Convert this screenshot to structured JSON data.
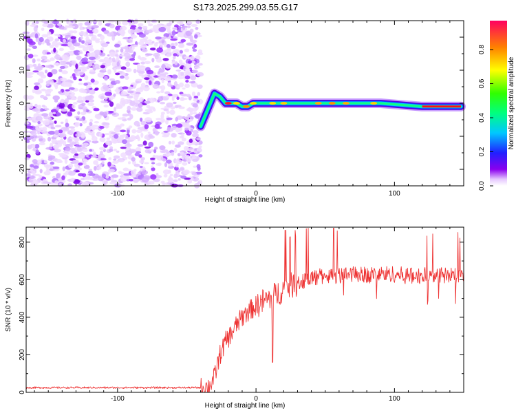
{
  "title": "S173.2025.299.03.55.G17",
  "chart_data": [
    {
      "type": "heatmap",
      "xlabel": "Height of straight line (km)",
      "ylabel": "Frequency (Hz)",
      "xlim": [
        -166,
        150
      ],
      "ylim": [
        -25,
        25
      ],
      "x_ticks": [
        -100,
        0,
        100
      ],
      "y_ticks": [
        -20,
        -10,
        0,
        10,
        20
      ],
      "noise_region_x": [
        -166,
        -40
      ],
      "ridge": {
        "description_x": [
          -40,
          -35,
          -30,
          -26,
          -22,
          -18,
          -14,
          -10,
          -6,
          -2,
          2,
          10,
          30,
          60,
          90,
          120,
          148
        ],
        "frequency_hz": [
          -7,
          -2,
          3,
          2,
          0,
          0,
          0,
          -1,
          -1,
          0,
          0,
          0,
          0,
          0,
          0,
          -1,
          -1
        ]
      },
      "colorbar": {
        "label": "Normalized spectral amplitude",
        "range": [
          0,
          0.97
        ],
        "ticks": [
          0.0,
          0.2,
          0.4,
          0.6,
          0.8
        ],
        "tick_labels": [
          "0.0",
          "0.2",
          "0.4",
          "0.6",
          "0.8"
        ]
      }
    },
    {
      "type": "line",
      "xlabel": "Height of straight line (km)",
      "ylabel": "SNR (10 * v/v)",
      "xlim": [
        -166,
        150
      ],
      "ylim": [
        0,
        880
      ],
      "x_ticks": [
        -100,
        0,
        100
      ],
      "y_ticks": [
        0,
        200,
        400,
        600,
        800
      ],
      "color": "#ee3333",
      "series": [
        {
          "name": "SNR",
          "x": [
            -166,
            -40,
            -34,
            -30,
            -26,
            -22,
            -18,
            -14,
            -10,
            -6,
            -2,
            2,
            6,
            10,
            14,
            18,
            22,
            26,
            30,
            35,
            40,
            50,
            60,
            70,
            80,
            90,
            100,
            110,
            120,
            130,
            140,
            150
          ],
          "y": [
            25,
            25,
            30,
            80,
            200,
            270,
            310,
            360,
            400,
            430,
            450,
            470,
            490,
            500,
            520,
            540,
            560,
            570,
            580,
            600,
            610,
            620,
            625,
            630,
            625,
            630,
            630,
            620,
            620,
            625,
            620,
            620
          ]
        }
      ]
    }
  ]
}
